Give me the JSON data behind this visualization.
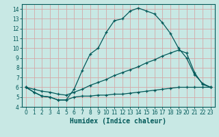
{
  "xlabel": "Humidex (Indice chaleur)",
  "background_color": "#c8e8e4",
  "grid_color": "#d4a8a8",
  "line_color": "#005858",
  "line1_x": [
    0,
    1,
    2,
    3,
    4,
    5,
    6,
    7,
    8,
    9,
    10,
    11,
    12,
    13,
    14,
    15,
    16,
    17,
    18,
    19,
    20,
    21,
    22,
    23
  ],
  "line1_y": [
    6.0,
    5.5,
    5.1,
    5.0,
    4.7,
    4.7,
    5.8,
    7.7,
    9.4,
    10.0,
    11.6,
    12.8,
    13.0,
    13.8,
    14.1,
    13.8,
    13.5,
    12.6,
    11.5,
    10.0,
    9.0,
    7.3,
    6.4,
    6.0
  ],
  "line2_x": [
    0,
    1,
    2,
    3,
    4,
    5,
    6,
    7,
    8,
    9,
    10,
    11,
    12,
    13,
    14,
    15,
    16,
    17,
    18,
    19,
    20,
    21,
    22,
    23
  ],
  "line2_y": [
    6.0,
    5.8,
    5.6,
    5.5,
    5.3,
    5.2,
    5.5,
    5.8,
    6.2,
    6.5,
    6.8,
    7.2,
    7.5,
    7.8,
    8.1,
    8.5,
    8.8,
    9.2,
    9.5,
    9.8,
    9.5,
    7.5,
    6.3,
    6.0
  ],
  "line3_x": [
    0,
    1,
    2,
    3,
    4,
    5,
    6,
    7,
    8,
    9,
    10,
    11,
    12,
    13,
    14,
    15,
    16,
    17,
    18,
    19,
    20,
    21,
    22,
    23
  ],
  "line3_y": [
    6.0,
    5.5,
    5.1,
    5.0,
    4.7,
    4.7,
    5.0,
    5.1,
    5.1,
    5.2,
    5.2,
    5.3,
    5.3,
    5.4,
    5.5,
    5.6,
    5.7,
    5.8,
    5.9,
    6.0,
    6.0,
    6.0,
    6.0,
    6.0
  ],
  "xticks": [
    0,
    1,
    2,
    3,
    4,
    5,
    6,
    7,
    8,
    9,
    10,
    11,
    12,
    13,
    14,
    15,
    16,
    17,
    18,
    19,
    20,
    21,
    22,
    23
  ],
  "yticks": [
    4,
    5,
    6,
    7,
    8,
    9,
    10,
    11,
    12,
    13,
    14
  ],
  "xlim": [
    -0.5,
    23.5
  ],
  "ylim": [
    4.0,
    14.5
  ],
  "fontsize": 7
}
